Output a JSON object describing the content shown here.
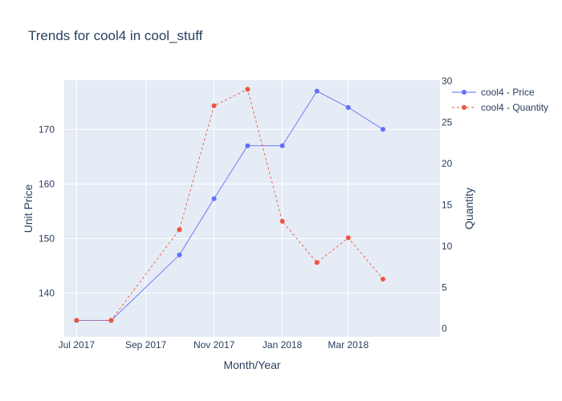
{
  "chart_data": {
    "type": "line",
    "title": "Trends for cool4 in cool_stuff",
    "xlabel": "Month/Year",
    "ylabel": "Unit Price",
    "y2label": "Quantity",
    "x_ticks": [
      "Jul 2017",
      "Sep 2017",
      "Nov 2017",
      "Jan 2018",
      "Mar 2018"
    ],
    "y_ticks": [
      140,
      150,
      160,
      170
    ],
    "y2_ticks": [
      0,
      5,
      10,
      15,
      20,
      25,
      30
    ],
    "ylim": [
      132,
      179
    ],
    "y2lim": [
      -1,
      30.1
    ],
    "xlim": [
      "2017-06-20",
      "2018-05-22"
    ],
    "x": [
      "2017-07-01",
      "2017-08-01",
      "2017-10-01",
      "2017-11-01",
      "2017-12-01",
      "2018-01-01",
      "2018-02-01",
      "2018-03-01",
      "2018-04-01"
    ],
    "series": [
      {
        "name": "cool4 - Price",
        "axis": "y",
        "color": "#636efa",
        "dash": "solid",
        "values": [
          135,
          135,
          147,
          157.3,
          167,
          167,
          177,
          174,
          170
        ]
      },
      {
        "name": "cool4 - Quantity",
        "axis": "y2",
        "color": "#ef553b",
        "dash": "dash",
        "values": [
          1,
          1,
          12,
          27,
          29,
          13,
          8,
          11,
          6
        ]
      }
    ],
    "legend": "top-right",
    "grid": true,
    "background": "#e5ecf6"
  }
}
